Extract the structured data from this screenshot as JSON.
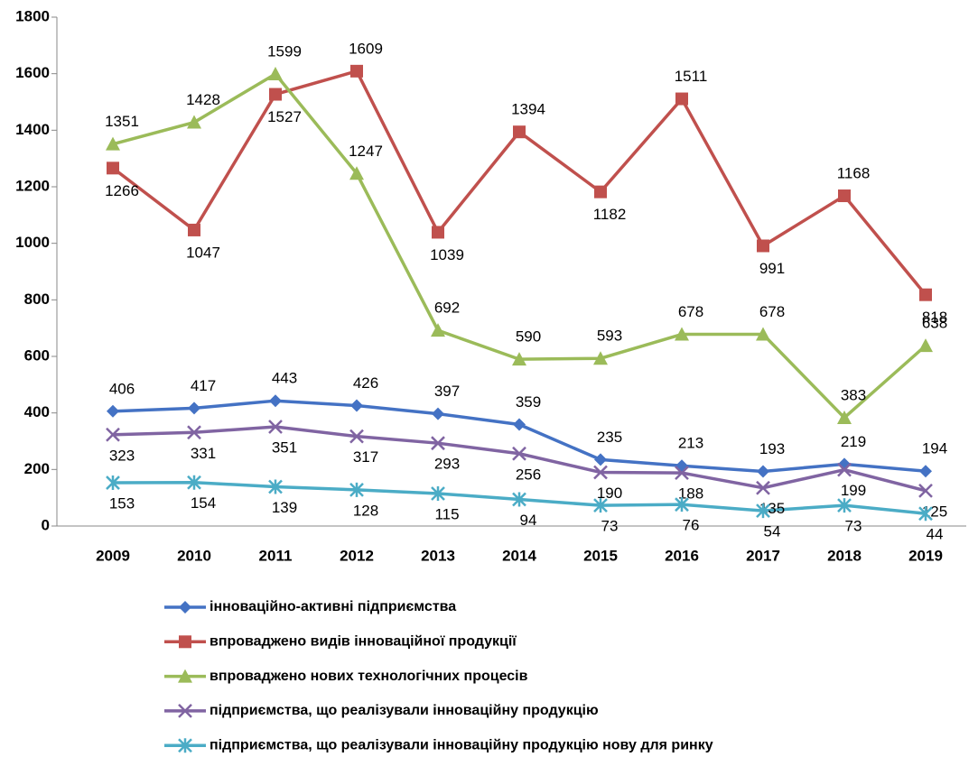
{
  "chart_data": {
    "type": "line",
    "categories": [
      "2009",
      "2010",
      "2011",
      "2012",
      "2013",
      "2014",
      "2015",
      "2016",
      "2017",
      "2018",
      "2019"
    ],
    "ylim": [
      0,
      1800
    ],
    "yticks": [
      0,
      200,
      400,
      600,
      800,
      1000,
      1200,
      1400,
      1600,
      1800
    ],
    "grid": false,
    "legend": "bottom",
    "series": [
      {
        "name": "інноваційно-активні підприємства",
        "color": "#4472c4",
        "marker": "diamond",
        "values": [
          406,
          417,
          443,
          426,
          397,
          359,
          235,
          213,
          193,
          219,
          194
        ]
      },
      {
        "name": "впроваджено видів інноваційної продукції",
        "color": "#c0504d",
        "marker": "square",
        "values": [
          1266,
          1047,
          1527,
          1609,
          1039,
          1394,
          1182,
          1511,
          991,
          1168,
          818
        ]
      },
      {
        "name": "впроваджено нових технологічних процесів",
        "color": "#9bbb59",
        "marker": "triangle",
        "values": [
          1351,
          1428,
          1599,
          1247,
          692,
          590,
          593,
          678,
          678,
          383,
          638
        ]
      },
      {
        "name": "підприємства, що реалізували інноваційну продукцію",
        "color": "#8064a2",
        "marker": "x",
        "values": [
          323,
          331,
          351,
          317,
          293,
          256,
          190,
          188,
          135,
          199,
          125
        ]
      },
      {
        "name": "підприємства, що реалізували інноваційну продукцію нову для ринку",
        "color": "#4bacc6",
        "marker": "star",
        "values": [
          153,
          154,
          139,
          128,
          115,
          94,
          73,
          76,
          54,
          73,
          44
        ]
      }
    ]
  }
}
